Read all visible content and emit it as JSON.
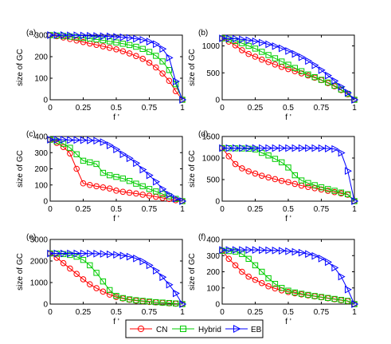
{
  "legend": {
    "entries": [
      {
        "label": "CN",
        "color": "#ff0000",
        "marker": "circle"
      },
      {
        "label": "Hybrid",
        "color": "#00cc00",
        "marker": "square"
      },
      {
        "label": "EB",
        "color": "#0000ff",
        "marker": "triangle-right"
      }
    ],
    "placement": "bottom-center"
  },
  "chart_data": [
    {
      "type": "line",
      "panel_label": "(a)",
      "xlabel": "f '",
      "ylabel": "size of GC",
      "xlim": [
        0,
        1
      ],
      "ylim": [
        0,
        300
      ],
      "xticks": [
        "0",
        "0.25",
        "0.5",
        "0.75",
        "1"
      ],
      "yticks": [
        "0",
        "100",
        "200",
        "300"
      ],
      "x": [
        0,
        0.05,
        0.1,
        0.15,
        0.2,
        0.25,
        0.3,
        0.35,
        0.4,
        0.45,
        0.5,
        0.55,
        0.6,
        0.65,
        0.7,
        0.75,
        0.8,
        0.85,
        0.9,
        0.95,
        1
      ],
      "series": [
        {
          "name": "CN",
          "values": [
            300,
            295,
            289,
            282,
            275,
            268,
            261,
            255,
            248,
            241,
            234,
            225,
            215,
            203,
            190,
            172,
            150,
            122,
            88,
            40,
            0
          ]
        },
        {
          "name": "Hybrid",
          "values": [
            300,
            298,
            296,
            293,
            290,
            287,
            284,
            280,
            276,
            271,
            266,
            260,
            254,
            246,
            236,
            222,
            204,
            178,
            138,
            72,
            0
          ]
        },
        {
          "name": "EB",
          "values": [
            300,
            300,
            300,
            299,
            299,
            298,
            297,
            296,
            295,
            294,
            292,
            290,
            287,
            283,
            278,
            270,
            258,
            236,
            195,
            85,
            0
          ]
        }
      ]
    },
    {
      "type": "line",
      "panel_label": "(b)",
      "xlabel": "f '",
      "ylabel": "size of GC",
      "xlim": [
        0,
        1
      ],
      "ylim": [
        0,
        1200
      ],
      "xticks": [
        "0",
        "0.25",
        "0.5",
        "0.75",
        "1"
      ],
      "yticks": [
        "0",
        "500",
        "1000"
      ],
      "x": [
        0,
        0.05,
        0.1,
        0.15,
        0.2,
        0.25,
        0.3,
        0.35,
        0.4,
        0.45,
        0.5,
        0.55,
        0.6,
        0.65,
        0.7,
        0.75,
        0.8,
        0.85,
        0.9,
        0.95,
        1
      ],
      "series": [
        {
          "name": "CN",
          "values": [
            1140,
            1080,
            1010,
            920,
            850,
            800,
            745,
            700,
            655,
            610,
            570,
            530,
            490,
            450,
            410,
            365,
            310,
            250,
            180,
            100,
            0
          ]
        },
        {
          "name": "Hybrid",
          "values": [
            1140,
            1120,
            1090,
            1050,
            1000,
            950,
            890,
            830,
            770,
            710,
            650,
            590,
            530,
            470,
            420,
            370,
            320,
            260,
            190,
            110,
            0
          ]
        },
        {
          "name": "EB",
          "values": [
            1140,
            1138,
            1132,
            1120,
            1105,
            1085,
            1060,
            1030,
            995,
            955,
            905,
            850,
            790,
            720,
            640,
            550,
            450,
            350,
            240,
            130,
            0
          ]
        }
      ]
    },
    {
      "type": "line",
      "panel_label": "(c)",
      "xlabel": "f '",
      "ylabel": "size of GC",
      "xlim": [
        0,
        1
      ],
      "ylim": [
        0,
        400
      ],
      "xticks": [
        "0",
        "0.25",
        "0.5",
        "0.75",
        "1"
      ],
      "yticks": [
        "0",
        "100",
        "200",
        "300",
        "400"
      ],
      "x": [
        0,
        0.05,
        0.1,
        0.15,
        0.2,
        0.25,
        0.3,
        0.35,
        0.4,
        0.45,
        0.5,
        0.55,
        0.6,
        0.65,
        0.7,
        0.75,
        0.8,
        0.85,
        0.9,
        0.95,
        1
      ],
      "series": [
        {
          "name": "CN",
          "values": [
            380,
            360,
            335,
            295,
            200,
            110,
            100,
            92,
            85,
            78,
            65,
            58,
            52,
            47,
            40,
            34,
            27,
            20,
            13,
            6,
            0
          ]
        },
        {
          "name": "Hybrid",
          "values": [
            380,
            370,
            355,
            330,
            290,
            250,
            240,
            230,
            175,
            160,
            150,
            140,
            125,
            108,
            92,
            75,
            60,
            44,
            30,
            14,
            0
          ]
        },
        {
          "name": "EB",
          "values": [
            380,
            380,
            380,
            378,
            378,
            377,
            376,
            374,
            365,
            345,
            320,
            290,
            265,
            235,
            195,
            160,
            120,
            75,
            40,
            15,
            0
          ]
        }
      ]
    },
    {
      "type": "line",
      "panel_label": "(d)",
      "xlabel": "f '",
      "ylabel": "size of GC",
      "xlim": [
        0,
        1
      ],
      "ylim": [
        0,
        1500
      ],
      "xticks": [
        "0",
        "0.25",
        "0.5",
        "0.75",
        "1"
      ],
      "yticks": [
        "0",
        "500",
        "1000",
        "1500"
      ],
      "x": [
        0,
        0.05,
        0.1,
        0.15,
        0.2,
        0.25,
        0.3,
        0.35,
        0.4,
        0.45,
        0.5,
        0.55,
        0.6,
        0.65,
        0.7,
        0.75,
        0.8,
        0.85,
        0.9,
        0.95,
        1
      ],
      "series": [
        {
          "name": "CN",
          "values": [
            1230,
            1040,
            860,
            760,
            690,
            640,
            590,
            550,
            510,
            470,
            440,
            400,
            360,
            330,
            300,
            270,
            240,
            210,
            180,
            150,
            0
          ]
        },
        {
          "name": "Hybrid",
          "values": [
            1230,
            1228,
            1225,
            1222,
            1215,
            1200,
            1120,
            1060,
            980,
            900,
            780,
            600,
            480,
            420,
            370,
            320,
            280,
            240,
            200,
            160,
            0
          ]
        },
        {
          "name": "EB",
          "values": [
            1230,
            1230,
            1230,
            1230,
            1230,
            1230,
            1230,
            1230,
            1230,
            1230,
            1230,
            1230,
            1230,
            1230,
            1230,
            1228,
            1220,
            1210,
            1120,
            700,
            0
          ]
        }
      ]
    },
    {
      "type": "line",
      "panel_label": "(e)",
      "xlabel": "f '",
      "ylabel": "size of GC",
      "xlim": [
        0,
        1
      ],
      "ylim": [
        0,
        3000
      ],
      "xticks": [
        "0",
        "0.25",
        "0.5",
        "0.75",
        "1"
      ],
      "yticks": [
        "0",
        "1000",
        "2000",
        "3000"
      ],
      "x": [
        0,
        0.05,
        0.1,
        0.15,
        0.2,
        0.25,
        0.3,
        0.35,
        0.4,
        0.45,
        0.5,
        0.55,
        0.6,
        0.65,
        0.7,
        0.75,
        0.8,
        0.85,
        0.9,
        0.95,
        1
      ],
      "series": [
        {
          "name": "CN",
          "values": [
            2350,
            2150,
            1900,
            1650,
            1400,
            1150,
            920,
            740,
            580,
            440,
            330,
            260,
            200,
            160,
            130,
            100,
            80,
            60,
            40,
            20,
            0
          ]
        },
        {
          "name": "Hybrid",
          "values": [
            2350,
            2340,
            2320,
            2280,
            2200,
            2050,
            1800,
            1450,
            1050,
            650,
            380,
            280,
            220,
            180,
            150,
            120,
            90,
            70,
            50,
            30,
            0
          ]
        },
        {
          "name": "EB",
          "values": [
            2350,
            2350,
            2350,
            2350,
            2350,
            2348,
            2345,
            2340,
            2330,
            2310,
            2290,
            2250,
            2200,
            2120,
            1980,
            1800,
            1550,
            1250,
            900,
            500,
            0
          ]
        }
      ]
    },
    {
      "type": "line",
      "panel_label": "(f)",
      "xlabel": "f '",
      "ylabel": "size of GC",
      "xlim": [
        0,
        1
      ],
      "ylim": [
        0,
        400
      ],
      "xticks": [
        "0",
        "0.25",
        "0.5",
        "0.75",
        "1"
      ],
      "yticks": [
        "0",
        "100",
        "200",
        "300",
        "400"
      ],
      "x": [
        0,
        0.05,
        0.1,
        0.15,
        0.2,
        0.25,
        0.3,
        0.35,
        0.4,
        0.45,
        0.5,
        0.55,
        0.6,
        0.65,
        0.7,
        0.75,
        0.8,
        0.85,
        0.9,
        0.95,
        1
      ],
      "series": [
        {
          "name": "CN",
          "values": [
            330,
            280,
            240,
            200,
            170,
            150,
            130,
            110,
            97,
            85,
            75,
            67,
            60,
            54,
            48,
            42,
            36,
            30,
            24,
            18,
            0
          ]
        },
        {
          "name": "Hybrid",
          "values": [
            330,
            328,
            325,
            310,
            280,
            240,
            200,
            160,
            125,
            100,
            83,
            72,
            64,
            57,
            50,
            44,
            38,
            32,
            26,
            20,
            0
          ]
        },
        {
          "name": "EB",
          "values": [
            335,
            335,
            335,
            335,
            335,
            335,
            334,
            333,
            332,
            330,
            327,
            323,
            318,
            310,
            298,
            282,
            260,
            225,
            170,
            90,
            0
          ]
        }
      ]
    }
  ]
}
